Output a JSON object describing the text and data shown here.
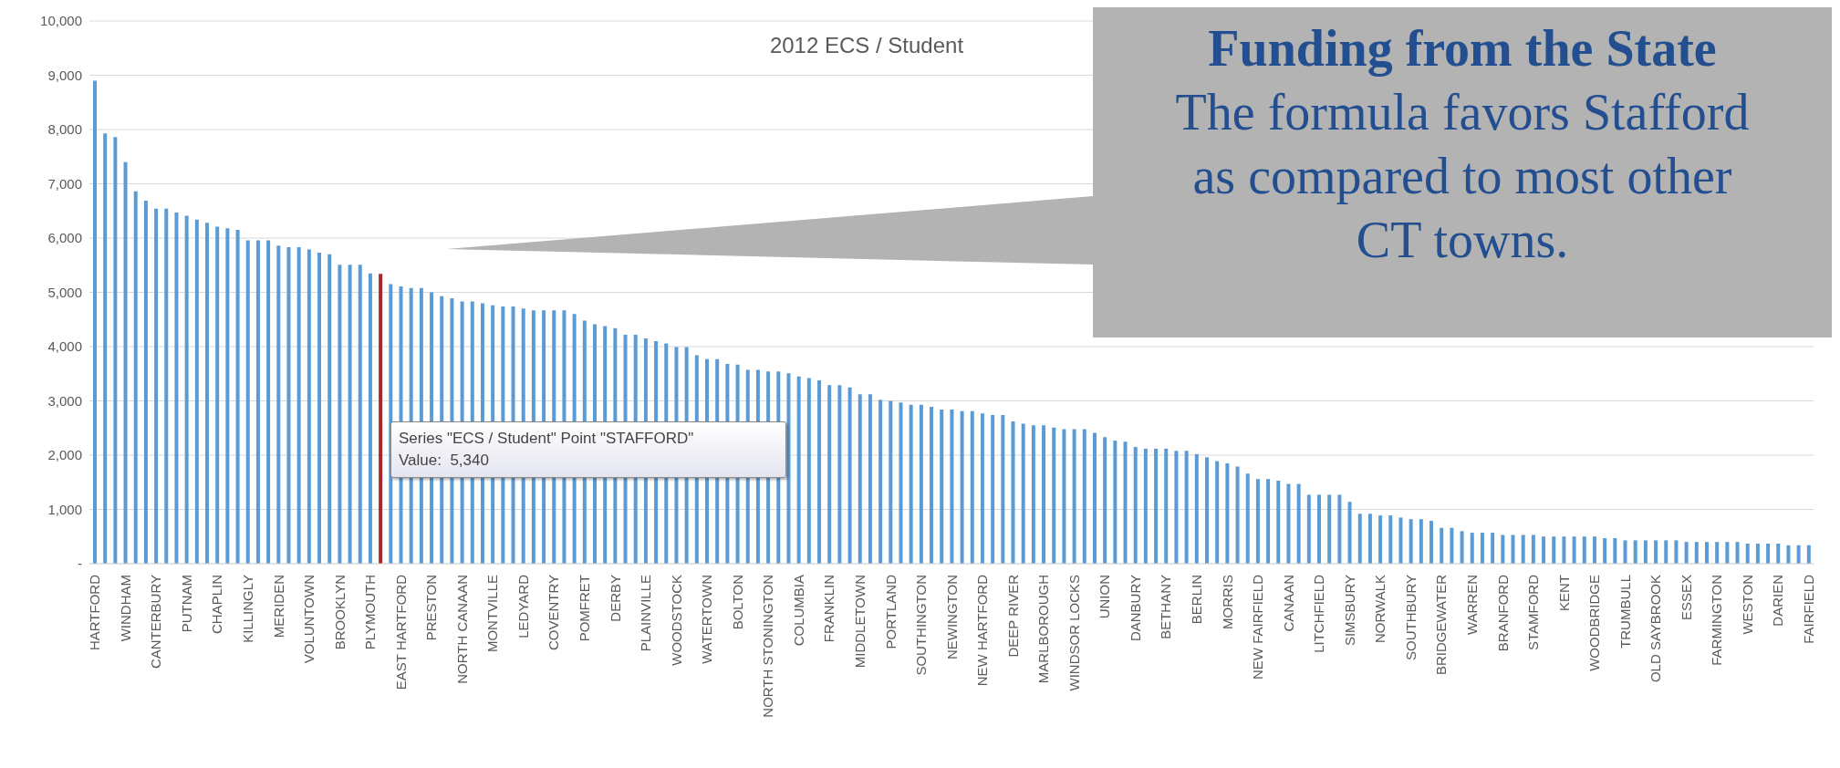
{
  "chart_data": {
    "type": "bar",
    "title": "2012 ECS / Student",
    "categories": [
      "HARTFORD",
      null,
      null,
      "WINDHAM",
      null,
      null,
      "CANTERBURY",
      null,
      null,
      "PUTNAM",
      null,
      null,
      "CHAPLIN",
      null,
      null,
      "KILLINGLY",
      null,
      null,
      "MERIDEN",
      null,
      null,
      "VOLUNTOWN",
      null,
      null,
      "BROOKLYN",
      null,
      null,
      "PLYMOUTH",
      null,
      null,
      "EAST HARTFORD",
      null,
      null,
      "PRESTON",
      null,
      null,
      "NORTH CANAAN",
      null,
      null,
      "MONTVILLE",
      null,
      null,
      "LEDYARD",
      null,
      null,
      "COVENTRY",
      null,
      null,
      "POMFRET",
      null,
      null,
      "DERBY",
      null,
      null,
      "PLAINVILLE",
      null,
      null,
      "WOODSTOCK",
      null,
      null,
      "WATERTOWN",
      null,
      null,
      "BOLTON",
      null,
      null,
      "NORTH STONINGTON",
      null,
      null,
      "COLUMBIA",
      null,
      null,
      "FRANKLIN",
      null,
      null,
      "MIDDLETOWN",
      null,
      null,
      "PORTLAND",
      null,
      null,
      "SOUTHINGTON",
      null,
      null,
      "NEWINGTON",
      null,
      null,
      "NEW HARTFORD",
      null,
      null,
      "DEEP RIVER",
      null,
      null,
      "MARLBOROUGH",
      null,
      null,
      "WINDSOR LOCKS",
      null,
      null,
      "UNION",
      null,
      null,
      "DANBURY",
      null,
      null,
      "BETHANY",
      null,
      null,
      "BERLIN",
      null,
      null,
      "MORRIS",
      null,
      null,
      "NEW FAIRFIELD",
      null,
      null,
      "CANAAN",
      null,
      null,
      "LITCHFIELD",
      null,
      null,
      "SIMSBURY",
      null,
      null,
      "NORWALK",
      null,
      null,
      "SOUTHBURY",
      null,
      null,
      "BRIDGEWATER",
      null,
      null,
      "WARREN",
      null,
      null,
      "BRANFORD",
      null,
      null,
      "STAMFORD",
      null,
      null,
      "KENT",
      null,
      null,
      "WOODBRIDGE",
      null,
      null,
      "TRUMBULL",
      null,
      null,
      "OLD SAYBROOK",
      null,
      null,
      "ESSEX",
      null,
      null,
      "FARMINGTON",
      null,
      null,
      "WESTON",
      null,
      null,
      "DARIEN",
      null,
      null,
      "FAIRFIELD"
    ],
    "values": [
      8900,
      7930,
      7860,
      7400,
      6860,
      6690,
      6540,
      6540,
      6470,
      6410,
      6340,
      6280,
      6210,
      6180,
      6150,
      5960,
      5960,
      5960,
      5860,
      5830,
      5830,
      5790,
      5730,
      5700,
      5510,
      5510,
      5510,
      5350,
      5340,
      5150,
      5110,
      5080,
      5080,
      5000,
      4930,
      4890,
      4830,
      4830,
      4800,
      4760,
      4740,
      4740,
      4700,
      4670,
      4670,
      4670,
      4670,
      4600,
      4480,
      4410,
      4380,
      4340,
      4220,
      4220,
      4150,
      4100,
      4060,
      3990,
      3990,
      3840,
      3770,
      3770,
      3680,
      3670,
      3570,
      3570,
      3540,
      3540,
      3510,
      3450,
      3420,
      3380,
      3290,
      3290,
      3250,
      3120,
      3120,
      3020,
      3000,
      2970,
      2930,
      2930,
      2890,
      2840,
      2840,
      2810,
      2810,
      2770,
      2740,
      2740,
      2620,
      2580,
      2550,
      2550,
      2510,
      2480,
      2480,
      2480,
      2410,
      2330,
      2270,
      2250,
      2150,
      2120,
      2120,
      2120,
      2080,
      2080,
      2020,
      1960,
      1890,
      1850,
      1790,
      1660,
      1560,
      1560,
      1530,
      1470,
      1470,
      1270,
      1270,
      1270,
      1270,
      1140,
      920,
      920,
      890,
      890,
      850,
      820,
      820,
      790,
      660,
      660,
      600,
      570,
      570,
      570,
      530,
      530,
      530,
      530,
      500,
      500,
      500,
      500,
      500,
      500,
      470,
      470,
      430,
      430,
      430,
      430,
      430,
      430,
      400,
      400,
      400,
      400,
      400,
      400,
      370,
      370,
      370,
      370,
      340,
      340,
      340
    ],
    "colors": [
      "#5b9bd5",
      "#5b9bd5",
      "#5b9bd5",
      "#5b9bd5",
      "#5b9bd5",
      "#5b9bd5",
      "#5b9bd5",
      "#5b9bd5",
      "#5b9bd5",
      "#5b9bd5",
      "#5b9bd5",
      "#5b9bd5",
      "#5b9bd5",
      "#5b9bd5",
      "#5b9bd5",
      "#5b9bd5",
      "#5b9bd5",
      "#5b9bd5",
      "#5b9bd5",
      "#5b9bd5",
      "#5b9bd5",
      "#5b9bd5",
      "#5b9bd5",
      "#5b9bd5",
      "#5b9bd5",
      "#5b9bd5",
      "#5b9bd5",
      "#5b9bd5",
      "#a5282c",
      "#5b9bd5",
      "#5b9bd5",
      "#5b9bd5",
      "#5b9bd5",
      "#5b9bd5",
      "#5b9bd5",
      "#5b9bd5",
      "#5b9bd5",
      "#5b9bd5",
      "#5b9bd5",
      "#5b9bd5",
      "#5b9bd5",
      "#5b9bd5",
      "#5b9bd5",
      "#5b9bd5",
      "#5b9bd5",
      "#5b9bd5",
      "#5b9bd5",
      "#5b9bd5",
      "#5b9bd5",
      "#5b9bd5",
      "#5b9bd5",
      "#5b9bd5",
      "#5b9bd5",
      "#5b9bd5",
      "#5b9bd5",
      "#5b9bd5",
      "#5b9bd5",
      "#5b9bd5",
      "#5b9bd5",
      "#5b9bd5",
      "#5b9bd5",
      "#5b9bd5",
      "#5b9bd5",
      "#5b9bd5",
      "#5b9bd5",
      "#5b9bd5",
      "#5b9bd5",
      "#5b9bd5",
      "#5b9bd5",
      "#5b9bd5",
      "#5b9bd5",
      "#5b9bd5",
      "#5b9bd5",
      "#5b9bd5",
      "#5b9bd5",
      "#5b9bd5",
      "#5b9bd5",
      "#5b9bd5",
      "#5b9bd5",
      "#5b9bd5",
      "#5b9bd5",
      "#5b9bd5",
      "#5b9bd5",
      "#5b9bd5",
      "#5b9bd5",
      "#5b9bd5",
      "#5b9bd5",
      "#5b9bd5",
      "#5b9bd5",
      "#5b9bd5",
      "#5b9bd5",
      "#5b9bd5",
      "#5b9bd5",
      "#5b9bd5",
      "#5b9bd5",
      "#5b9bd5",
      "#5b9bd5",
      "#5b9bd5",
      "#5b9bd5",
      "#5b9bd5",
      "#5b9bd5",
      "#5b9bd5",
      "#5b9bd5",
      "#5b9bd5",
      "#5b9bd5",
      "#5b9bd5",
      "#5b9bd5",
      "#5b9bd5",
      "#5b9bd5",
      "#5b9bd5",
      "#5b9bd5",
      "#5b9bd5",
      "#5b9bd5",
      "#5b9bd5",
      "#5b9bd5",
      "#5b9bd5",
      "#5b9bd5",
      "#5b9bd5",
      "#5b9bd5",
      "#5b9bd5",
      "#5b9bd5",
      "#5b9bd5",
      "#5b9bd5",
      "#5b9bd5",
      "#5b9bd5",
      "#5b9bd5",
      "#5b9bd5",
      "#5b9bd5",
      "#5b9bd5",
      "#5b9bd5",
      "#5b9bd5",
      "#5b9bd5",
      "#5b9bd5",
      "#5b9bd5",
      "#5b9bd5",
      "#5b9bd5",
      "#5b9bd5",
      "#5b9bd5",
      "#5b9bd5",
      "#5b9bd5",
      "#5b9bd5",
      "#5b9bd5",
      "#5b9bd5",
      "#5b9bd5",
      "#5b9bd5",
      "#5b9bd5",
      "#5b9bd5",
      "#5b9bd5",
      "#5b9bd5",
      "#5b9bd5",
      "#5b9bd5",
      "#5b9bd5",
      "#5b9bd5",
      "#5b9bd5",
      "#5b9bd5",
      "#5b9bd5",
      "#5b9bd5",
      "#5b9bd5",
      "#5b9bd5",
      "#5b9bd5",
      "#5b9bd5",
      "#5b9bd5",
      "#5b9bd5",
      "#5b9bd5",
      "#5b9bd5",
      "#5b9bd5",
      "#5b9bd5",
      "#5b9bd5",
      "#5b9bd5"
    ],
    "ylim": [
      0,
      10000
    ],
    "yticks": [
      {
        "value": 0,
        "label": "-"
      },
      {
        "value": 1000,
        "label": "1,000"
      },
      {
        "value": 2000,
        "label": "2,000"
      },
      {
        "value": 3000,
        "label": "3,000"
      },
      {
        "value": 4000,
        "label": "4,000"
      },
      {
        "value": 5000,
        "label": "5,000"
      },
      {
        "value": 6000,
        "label": "6,000"
      },
      {
        "value": 7000,
        "label": "7,000"
      },
      {
        "value": 8000,
        "label": "8,000"
      },
      {
        "value": 9000,
        "label": "9,000"
      },
      {
        "value": 10000,
        "label": "10,000"
      }
    ],
    "grid": "y",
    "annotations": [
      "Funding from the State",
      "The formula favors Stafford as compared to most other CT towns.",
      "Series \"ECS / Student\" Point \"STAFFORD\"",
      "Value:  5,340"
    ]
  }
}
